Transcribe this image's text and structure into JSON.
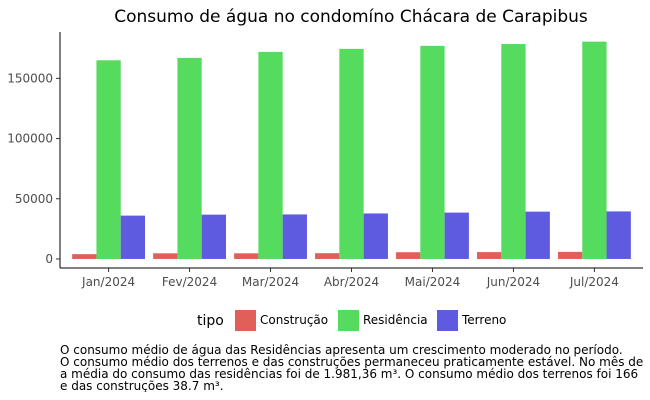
{
  "chart_data": {
    "type": "bar",
    "title": "Consumo de água no condomíno Chácara de Carapibus",
    "xlabel": "",
    "ylabel": "",
    "categories": [
      "Jan/2024",
      "Fev/2024",
      "Mar/2024",
      "Abr/2024",
      "Mai/2024",
      "Jun/2024",
      "Jul/2024"
    ],
    "series": [
      {
        "name": "Construção",
        "color": "#E06059",
        "values": [
          4000,
          4700,
          4700,
          4800,
          5600,
          5700,
          5900
        ]
      },
      {
        "name": "Residência",
        "color": "#55DB5E",
        "values": [
          165000,
          167000,
          172000,
          174500,
          177000,
          178500,
          180500
        ]
      },
      {
        "name": "Terreno",
        "color": "#5F5BE0",
        "values": [
          36000,
          36800,
          37000,
          37800,
          38500,
          39300,
          39500
        ]
      }
    ],
    "ylim": [
      -7500,
      188500
    ],
    "yticks": [
      0,
      50000,
      100000,
      150000
    ],
    "ytick_labels": [
      "0",
      "50000",
      "100000",
      "150000"
    ],
    "grid": false,
    "legend": {
      "title": "tipo",
      "position": "bottom"
    }
  },
  "caption": {
    "lines": [
      "O consumo médio de água das Residências apresenta um crescimento moderado no período.",
      "O consumo médio dos terrenos e das construções permaneceu praticamente estável. No mês de",
      "a média do consumo das residências foi de 1.981,36 m³. O consumo médio dos terrenos foi 166",
      "e das construções 38.7 m³."
    ]
  }
}
